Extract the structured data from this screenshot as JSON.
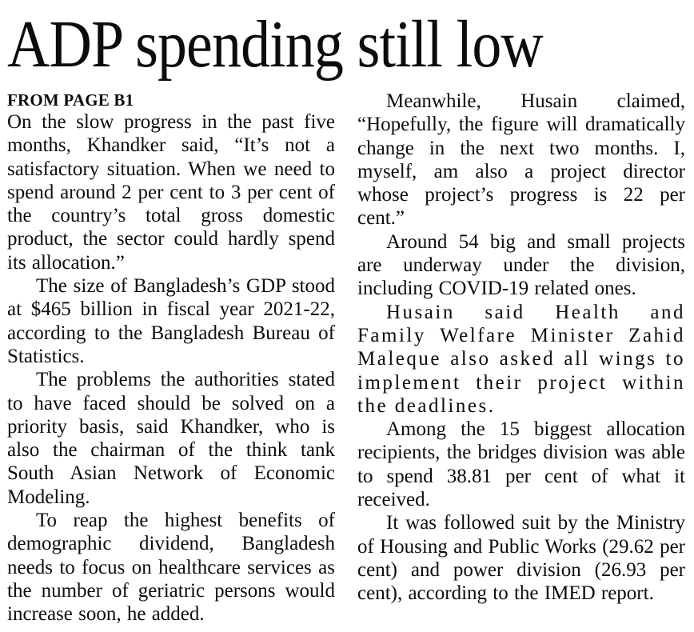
{
  "article": {
    "headline": "ADP spending still low",
    "kicker": "FROM PAGE B1"
  },
  "columns": {
    "left": [
      "On the slow progress in the past five months, Khandker said, “It’s not a satisfactory situation. When we need to spend around 2 per cent to 3 per cent of the country’s total gross domestic product, the sector could hardly spend its allocation.”",
      "The size of Bangladesh’s GDP stood at $465 billion in fiscal year 2021-22, according to the Bangladesh Bureau of Statistics.",
      "The problems the authorities stated to have faced should be solved on a priority basis, said Khandker, who is also the chairman of the think tank South Asian Network of Economic Modeling.",
      "To reap the highest benefits of demographic dividend, Bangladesh needs to focus on healthcare services as the number of geriatric persons would increase soon, he added."
    ],
    "right": [
      "Meanwhile, Husain claimed, “Hopefully, the figure will dramatically change in the next two months. I, myself, am also a project director whose project’s progress is 22 per cent.”",
      "Around 54 big and small projects are underway under the division, including COVID-19 related ones.",
      "Husain said Health and Family Welfare Minister Zahid Maleque also asked all wings to implement their project within the deadlines.",
      "Among the 15 biggest allocation recipients, the bridges division was able to spend 38.81 per cent of what it received.",
      "It was followed suit by the Ministry of Housing and Public Works (29.62 per cent) and power division (26.93 per cent), according to the IMED report."
    ]
  },
  "colors": {
    "text": "#0c0c0c",
    "background": "#ffffff"
  }
}
